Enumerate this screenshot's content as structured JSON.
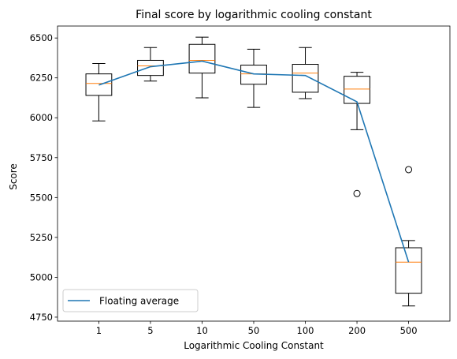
{
  "chart_data": {
    "type": "box",
    "title": "Final score by logarithmic cooling constant",
    "xlabel": "Logarithmic Cooling Constant",
    "ylabel": "Score",
    "categories": [
      "1",
      "5",
      "10",
      "50",
      "100",
      "200",
      "500"
    ],
    "ylim": [
      4725,
      6575
    ],
    "yticks": [
      4750,
      5000,
      5250,
      5500,
      5750,
      6000,
      6250,
      6500
    ],
    "boxes": [
      {
        "category": "1",
        "whisker_low": 5980,
        "q1": 6140,
        "median": 6215,
        "q3": 6275,
        "whisker_high": 6340,
        "outliers": []
      },
      {
        "category": "5",
        "whisker_low": 6230,
        "q1": 6265,
        "median": 6325,
        "q3": 6360,
        "whisker_high": 6440,
        "outliers": []
      },
      {
        "category": "10",
        "whisker_low": 6125,
        "q1": 6280,
        "median": 6360,
        "q3": 6460,
        "whisker_high": 6505,
        "outliers": []
      },
      {
        "category": "50",
        "whisker_low": 6065,
        "q1": 6210,
        "median": 6275,
        "q3": 6330,
        "whisker_high": 6430,
        "outliers": []
      },
      {
        "category": "100",
        "whisker_low": 6120,
        "q1": 6160,
        "median": 6280,
        "q3": 6335,
        "whisker_high": 6440,
        "outliers": []
      },
      {
        "category": "200",
        "whisker_low": 5925,
        "q1": 6090,
        "median": 6180,
        "q3": 6260,
        "whisker_high": 6285,
        "outliers": [
          5525
        ]
      },
      {
        "category": "500",
        "whisker_low": 4820,
        "q1": 4900,
        "median": 5095,
        "q3": 5185,
        "whisker_high": 5230,
        "outliers": [
          5675
        ]
      }
    ],
    "series": [
      {
        "name": "Floating average",
        "type": "line",
        "values": [
          6205,
          6320,
          6355,
          6275,
          6265,
          6100,
          5095
        ]
      }
    ],
    "legend": {
      "position": "lower-left",
      "entries": [
        "Floating average"
      ]
    },
    "grid": false,
    "colors": {
      "box": "#000000",
      "median": "#ff7f0e",
      "line": "#1f77b4",
      "outlier": "#000000"
    }
  }
}
